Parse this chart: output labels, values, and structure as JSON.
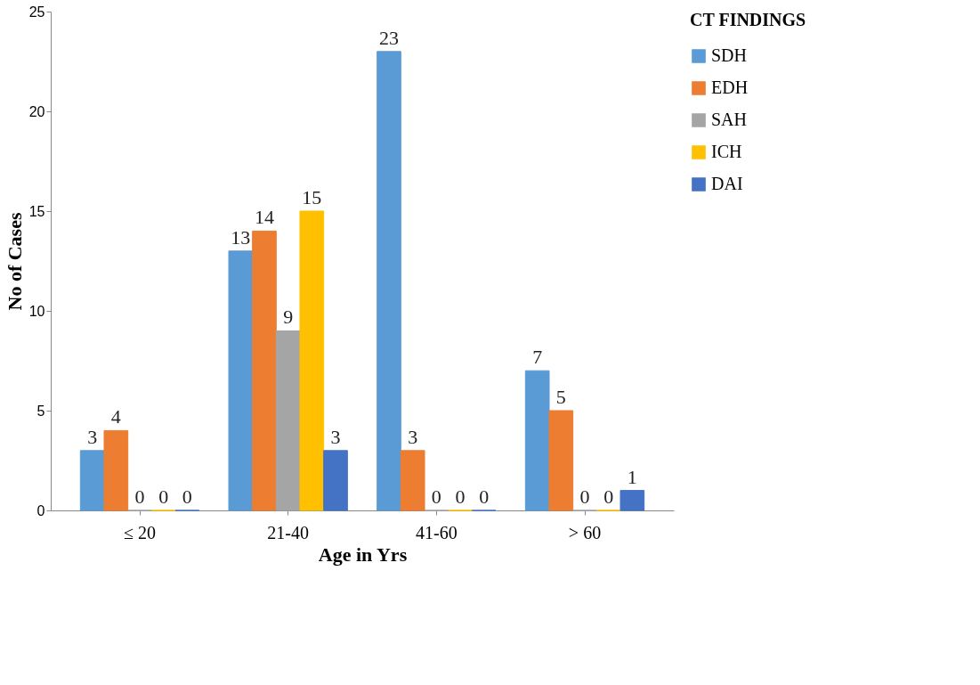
{
  "chart_data": {
    "type": "bar",
    "xlabel": "Age in Yrs",
    "ylabel": "No of Cases",
    "legend_title": "CT  FINDINGS",
    "categories": [
      "≤  20",
      "21-40",
      "41-60",
      "> 60"
    ],
    "series": [
      {
        "name": "SDH",
        "color": "#5b9bd5",
        "values": [
          3,
          13,
          23,
          7
        ]
      },
      {
        "name": "EDH",
        "color": "#ed7d31",
        "values": [
          4,
          14,
          3,
          5
        ]
      },
      {
        "name": "SAH",
        "color": "#a5a5a5",
        "values": [
          0,
          9,
          0,
          0
        ]
      },
      {
        "name": "ICH",
        "color": "#ffc000",
        "values": [
          0,
          15,
          0,
          0
        ]
      },
      {
        "name": "DAI",
        "color": "#4472c4",
        "values": [
          0,
          3,
          0,
          1
        ]
      }
    ],
    "ylim": [
      0,
      25
    ],
    "yticks": [
      0,
      5,
      10,
      15,
      20,
      25
    ],
    "grid": false,
    "legend": "right",
    "data_labels": true
  }
}
